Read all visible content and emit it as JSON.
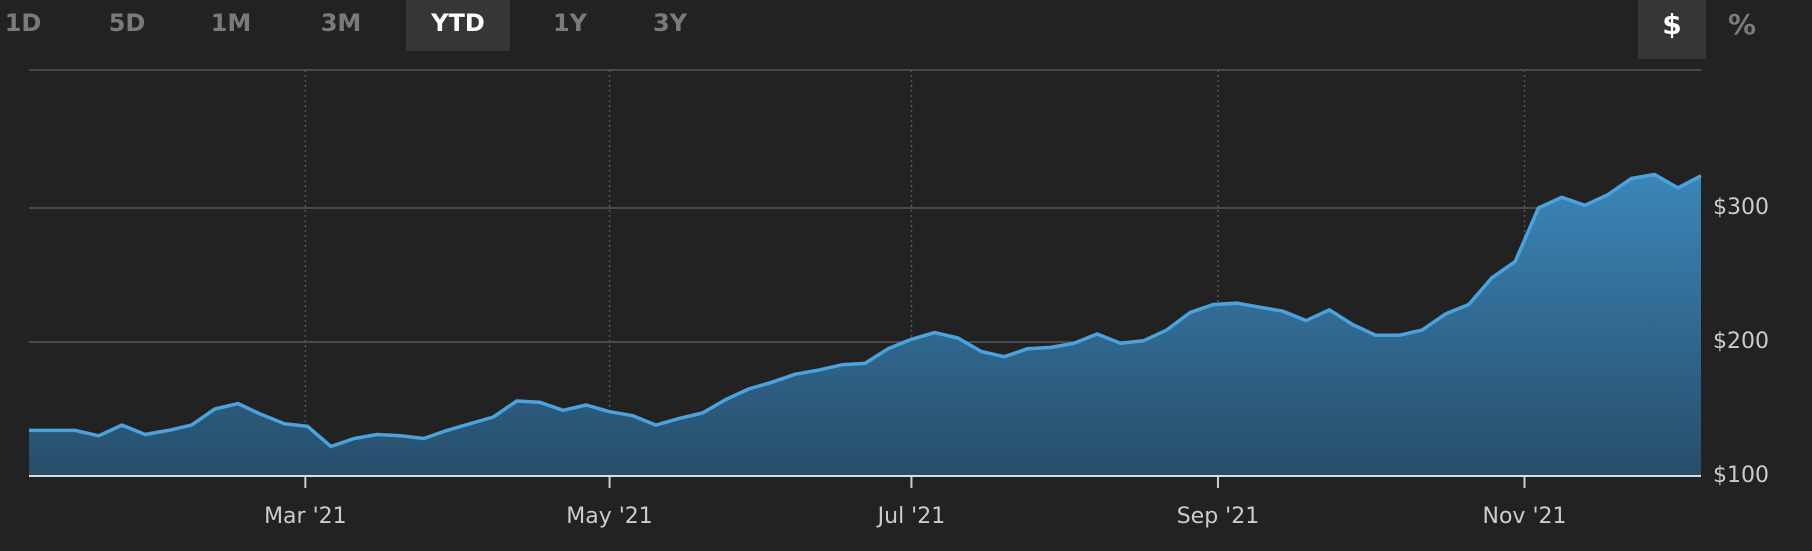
{
  "toolbar": {
    "ranges": [
      "1D",
      "5D",
      "1M",
      "3M",
      "YTD",
      "1Y",
      "3Y"
    ],
    "selected_range": 4,
    "units": [
      "$",
      "%"
    ],
    "selected_unit": 0
  },
  "chart_data": {
    "type": "area",
    "color": "#4aa3dd",
    "values": [
      134,
      134,
      134,
      130,
      138,
      131,
      134,
      138,
      150,
      154,
      146,
      139,
      137,
      122,
      128,
      131,
      130,
      128,
      134,
      139,
      144,
      156,
      155,
      149,
      153,
      148,
      145,
      138,
      143,
      147,
      157,
      165,
      170,
      176,
      179,
      183,
      184,
      195,
      202,
      207,
      203,
      193,
      189,
      195,
      196,
      199,
      206,
      199,
      201,
      209,
      222,
      228,
      229,
      226,
      223,
      216,
      224,
      213,
      205,
      205,
      209,
      221,
      228,
      248,
      260,
      300,
      308,
      302,
      310,
      322,
      325,
      315,
      324
    ],
    "xlim": [
      0,
      72
    ],
    "xticks": [
      {
        "value": 11.9,
        "label": "Mar '21"
      },
      {
        "value": 25,
        "label": "May '21"
      },
      {
        "value": 38,
        "label": "Jul '21"
      },
      {
        "value": 51.2,
        "label": "Sep '21"
      },
      {
        "value": 64.4,
        "label": "Nov '21"
      }
    ],
    "ylim": [
      100,
      400
    ],
    "yticks": [
      {
        "value": 100,
        "label": "$100"
      },
      {
        "value": 200,
        "label": "$200"
      },
      {
        "value": 300,
        "label": "$300"
      }
    ],
    "grid": true
  }
}
